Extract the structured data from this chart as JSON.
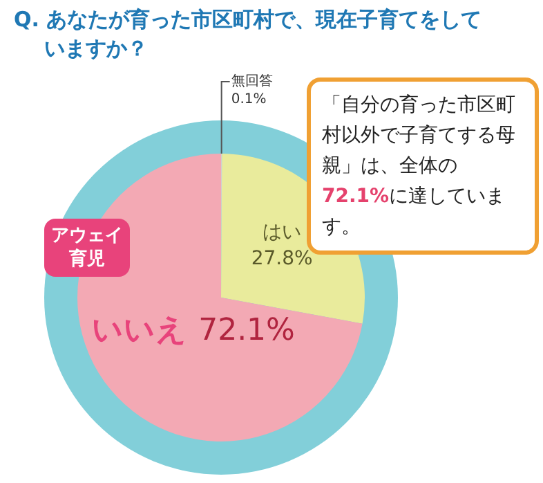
{
  "chart_data": {
    "type": "pie",
    "title": "Q. あなたが育った市区町村で、現在子育てをしていますか？",
    "categories": [
      "無回答",
      "はい",
      "いいえ"
    ],
    "values": [
      0.1,
      27.8,
      72.1
    ],
    "value_labels": [
      "0.1%",
      "27.8%",
      "72.1%"
    ],
    "colors": [
      "#d0d0d0",
      "#e9eb9c",
      "#f3a9b4"
    ],
    "legend": false,
    "annotations": [
      "「自分の育った市区町村以外で子育てする母親」は、全体の72.1%に達しています。",
      "アウェイ育児"
    ]
  }
}
